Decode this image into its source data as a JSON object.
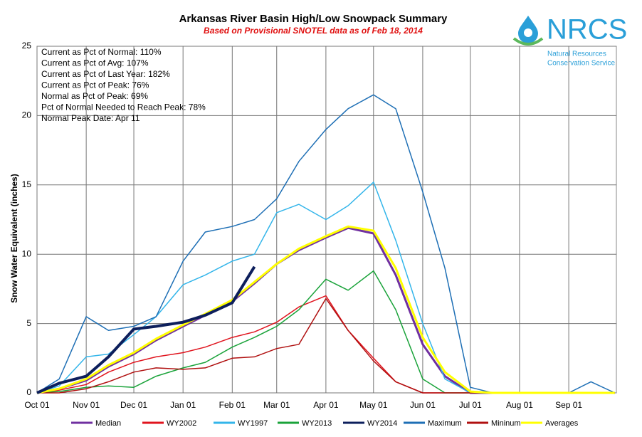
{
  "chart_data": {
    "type": "line",
    "title": "Arkansas River Basin High/Low Snowpack Summary",
    "subtitle": "Based on Provisional SNOTEL data as of Feb 18, 2014",
    "y_label": "Snow Water Equivalent (inches)",
    "logo": {
      "name": "NRCS",
      "line1": "Natural Resources",
      "line2": "Conservation Service"
    },
    "notes": [
      "Current  as Pct of Normal: 110%",
      "Current  as Pct of Avg: 107%",
      "Current  as Pct of Last Year: 182%",
      "Current  as Pct of Peak: 76%",
      "Normal  as Pct of Peak: 69%",
      "Pct of Normal Needed  to Reach Peak: 78%",
      "Normal Peak Date: Apr 11"
    ],
    "x": [
      "Oct 01",
      "Oct 15",
      "Nov 01",
      "Nov 15",
      "Dec 01",
      "Dec 15",
      "Jan 01",
      "Jan 15",
      "Feb 01",
      "Feb 15",
      "Mar 01",
      "Mar 15",
      "Apr 01",
      "Apr 15",
      "May 01",
      "May 15",
      "Jun 01",
      "Jun 15",
      "Jul 01",
      "Jul 15",
      "Aug 01",
      "Aug 15",
      "Sep 01",
      "Sep 15",
      "Sep 30"
    ],
    "xticks": [
      "Oct 01",
      "Nov 01",
      "Dec 01",
      "Jan 01",
      "Feb 01",
      "Mar 01",
      "Apr 01",
      "May 01",
      "Jun 01",
      "Jul 01",
      "Aug 01",
      "Sep 01"
    ],
    "ylim": [
      0,
      25
    ],
    "yticks": [
      0,
      5,
      10,
      15,
      20,
      25
    ],
    "grid": true,
    "series": [
      {
        "name": "Median",
        "color": "#7030a0",
        "width": 3,
        "values": [
          0,
          0.3,
          0.9,
          1.9,
          2.8,
          3.8,
          4.8,
          5.6,
          6.6,
          7.9,
          9.3,
          10.3,
          11.2,
          11.9,
          11.5,
          8.5,
          3.5,
          1.2,
          0,
          0,
          0,
          0,
          0,
          0,
          0
        ]
      },
      {
        "name": "WY2002",
        "color": "#e0141e",
        "width": 1.5,
        "values": [
          0,
          0.2,
          0.6,
          1.5,
          2.2,
          2.6,
          2.9,
          3.3,
          4.0,
          4.4,
          5.1,
          6.2,
          7.0,
          4.5,
          2.5,
          0.8,
          0,
          0,
          0,
          0,
          0,
          0,
          0,
          0,
          0
        ]
      },
      {
        "name": "WY1997",
        "color": "#33b5ea",
        "width": 1.5,
        "values": [
          0,
          0.5,
          2.6,
          2.8,
          4.2,
          5.5,
          7.8,
          8.5,
          9.5,
          10.0,
          13.0,
          13.6,
          12.5,
          13.5,
          15.2,
          11.0,
          5.0,
          1.0,
          0,
          0,
          0,
          0,
          0,
          0,
          0
        ]
      },
      {
        "name": "WY2013",
        "color": "#1aa33a",
        "width": 1.5,
        "values": [
          0,
          0.1,
          0.4,
          0.5,
          0.4,
          1.2,
          1.8,
          2.2,
          3.3,
          4.0,
          4.8,
          6.0,
          8.2,
          7.4,
          8.8,
          6.0,
          1.0,
          0,
          0,
          0,
          0,
          0,
          0,
          0,
          0
        ]
      },
      {
        "name": "WY2014",
        "color": "#0d1f5c",
        "width": 4,
        "values": [
          0,
          0.7,
          1.2,
          2.6,
          4.6,
          4.8,
          5.1,
          5.6,
          6.5,
          9.1,
          null,
          null,
          null,
          null,
          null,
          null,
          null,
          null,
          null,
          null,
          null,
          null,
          null,
          null,
          null
        ]
      },
      {
        "name": "Maximum",
        "color": "#1e6fb5",
        "width": 1.5,
        "values": [
          0,
          1.0,
          5.5,
          4.5,
          4.8,
          5.5,
          9.5,
          11.6,
          12.0,
          12.5,
          14.0,
          16.7,
          19.0,
          20.5,
          21.5,
          20.5,
          14.5,
          9.0,
          0.4,
          0,
          0,
          0,
          0,
          0.8,
          0
        ]
      },
      {
        "name": "Mininum",
        "color": "#b01010",
        "width": 1.5,
        "values": [
          0,
          0,
          0.3,
          0.8,
          1.5,
          1.8,
          1.7,
          1.8,
          2.5,
          2.6,
          3.2,
          3.5,
          6.8,
          4.5,
          2.3,
          0.8,
          0,
          0,
          0,
          0,
          0,
          0,
          0,
          0,
          0
        ]
      },
      {
        "name": "Averages",
        "color": "#ffff00",
        "width": 3,
        "values": [
          0,
          0.3,
          1.0,
          2.0,
          2.9,
          3.9,
          4.9,
          5.7,
          6.7,
          8.0,
          9.3,
          10.4,
          11.3,
          12.0,
          11.7,
          9.0,
          4.0,
          1.5,
          0.1,
          0,
          0,
          0,
          0,
          0,
          0
        ]
      }
    ]
  }
}
